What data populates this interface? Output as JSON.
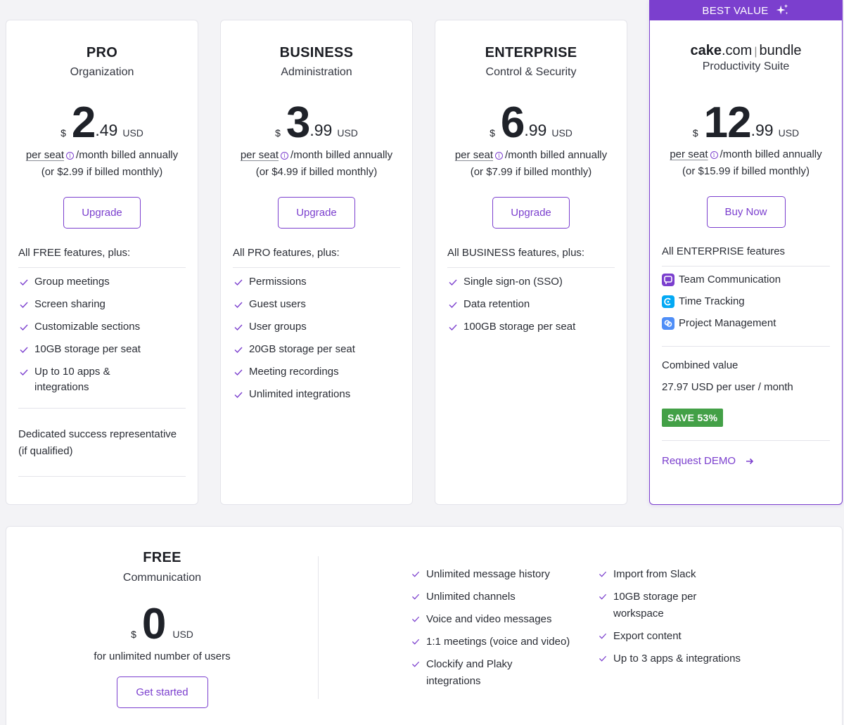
{
  "plans": [
    {
      "name": "PRO",
      "subtitle": "Organization",
      "currency": "$",
      "price_whole": "2",
      "price_cents": ".49",
      "unit": "USD",
      "per_seat": "per seat",
      "billing": "/month billed annually",
      "monthly_note": "(or $2.99 if billed monthly)",
      "button": "Upgrade",
      "features_heading": "All FREE features, plus:",
      "features": [
        "Group meetings",
        "Screen sharing",
        "Customizable sections",
        "10GB storage per seat",
        "Up to 10 apps & integrations"
      ],
      "extra": "Dedicated success representative (if qualified)"
    },
    {
      "name": "BUSINESS",
      "subtitle": "Administration",
      "currency": "$",
      "price_whole": "3",
      "price_cents": ".99",
      "unit": "USD",
      "per_seat": "per seat",
      "billing": "/month billed annually",
      "monthly_note": "(or $4.99 if billed monthly)",
      "button": "Upgrade",
      "features_heading": "All PRO features, plus:",
      "features": [
        "Permissions",
        "Guest users",
        "User groups",
        "20GB storage per seat",
        "Meeting recordings",
        "Unlimited integrations"
      ]
    },
    {
      "name": "ENTERPRISE",
      "subtitle": "Control & Security",
      "currency": "$",
      "price_whole": "6",
      "price_cents": ".99",
      "unit": "USD",
      "per_seat": "per seat",
      "billing": "/month billed annually",
      "monthly_note": "(or $7.99 if billed monthly)",
      "button": "Upgrade",
      "features_heading": "All BUSINESS features, plus:",
      "features": [
        "Single sign-on (SSO)",
        "Data retention",
        "100GB storage per seat"
      ]
    }
  ],
  "bundle": {
    "badge": "BEST VALUE",
    "logo_brand": "cake",
    "logo_domain": ".com",
    "logo_sep": "|",
    "logo_word": "bundle",
    "subtitle": "Productivity Suite",
    "currency": "$",
    "price_whole": "12",
    "price_cents": ".99",
    "unit": "USD",
    "per_seat": "per seat",
    "billing": "/month billed annually",
    "monthly_note": "(or $15.99 if billed monthly)",
    "button": "Buy Now",
    "features_heading": "All ENTERPRISE features",
    "apps": [
      {
        "label": "Team Communication",
        "icon": "pumble-icon",
        "color": "#7b3fce"
      },
      {
        "label": "Time Tracking",
        "icon": "clockify-icon",
        "color": "#03a9f4"
      },
      {
        "label": "Project Management",
        "icon": "plaky-icon",
        "color": "#4f8ef7"
      }
    ],
    "combined_label": "Combined value",
    "combined_value": "27.97 USD per user / month",
    "save_badge": "SAVE 53%",
    "request_demo": "Request DEMO"
  },
  "free": {
    "name": "FREE",
    "subtitle": "Communication",
    "currency": "$",
    "price_whole": "0",
    "unit": "USD",
    "for_users": "for unlimited number of users",
    "button": "Get started",
    "features_col1": [
      "Unlimited message history",
      "Unlimited channels",
      "Voice and video messages",
      "1:1 meetings (voice and video)",
      "Clockify and Plaky integrations"
    ],
    "features_col2": [
      "Import from Slack",
      "10GB storage per workspace",
      "Export content",
      "Up to 3 apps & integrations"
    ]
  },
  "colors": {
    "accent": "#7b3fce",
    "save_green": "#43a047"
  }
}
